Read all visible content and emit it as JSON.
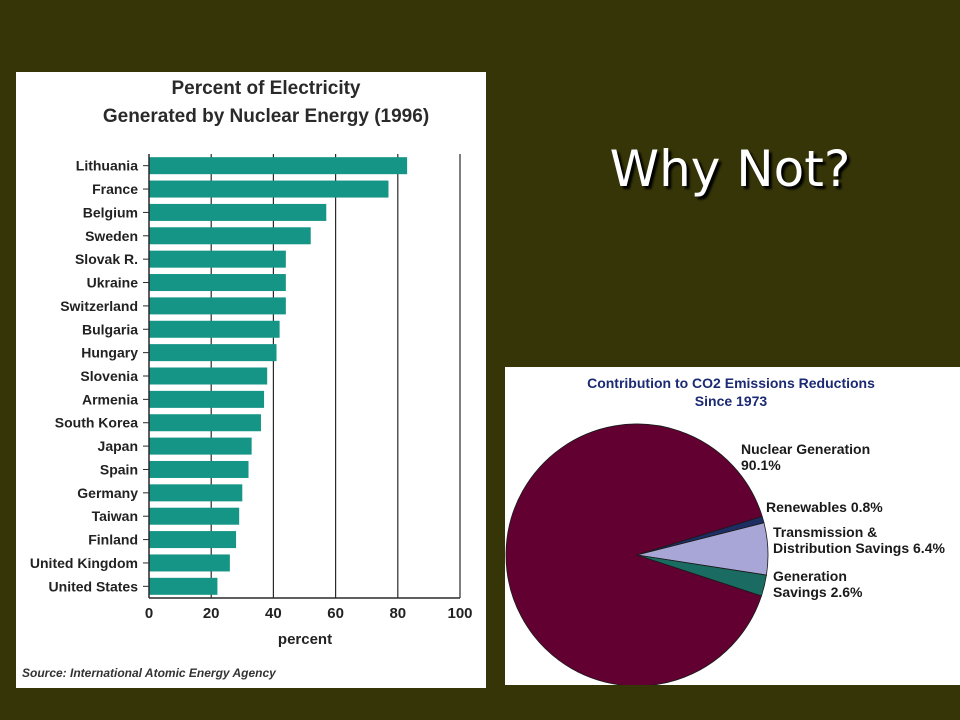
{
  "slide": {
    "title": "Why Not?"
  },
  "chart_data": [
    {
      "type": "bar",
      "orientation": "horizontal",
      "title": [
        "Percent of Electricity",
        "Generated by Nuclear Energy (1996)"
      ],
      "categories": [
        "Lithuania",
        "France",
        "Belgium",
        "Sweden",
        "Slovak R.",
        "Ukraine",
        "Switzerland",
        "Bulgaria",
        "Hungary",
        "Slovenia",
        "Armenia",
        "South Korea",
        "Japan",
        "Spain",
        "Germany",
        "Taiwan",
        "Finland",
        "United Kingdom",
        "United States"
      ],
      "values": [
        83,
        77,
        57,
        52,
        44,
        44,
        44,
        42,
        41,
        38,
        37,
        36,
        33,
        32,
        30,
        29,
        28,
        26,
        22
      ],
      "xlabel": "percent",
      "xlim": [
        0,
        100
      ],
      "xticks": [
        0,
        20,
        40,
        60,
        80,
        100
      ],
      "grid": true,
      "source": "Source: International Atomic Energy Agency",
      "bar_color": "#149586"
    },
    {
      "type": "pie",
      "title": [
        "Contribution to CO2 Emissions Reductions",
        "Since 1973"
      ],
      "slices": [
        {
          "label": [
            "Nuclear Generation",
            "90.1%"
          ],
          "value": 90.1,
          "color": "#620032"
        },
        {
          "label": [
            "Renewables 0.8%"
          ],
          "value": 0.8,
          "color": "#1c2e63"
        },
        {
          "label": [
            "Transmission &",
            "Distribution Savings 6.4%"
          ],
          "value": 6.4,
          "color": "#a8a6d6"
        },
        {
          "label": [
            "Generation",
            "Savings 2.6%"
          ],
          "value": 2.6,
          "color": "#1a6b62"
        }
      ],
      "title_color": "#1b2a73"
    }
  ]
}
